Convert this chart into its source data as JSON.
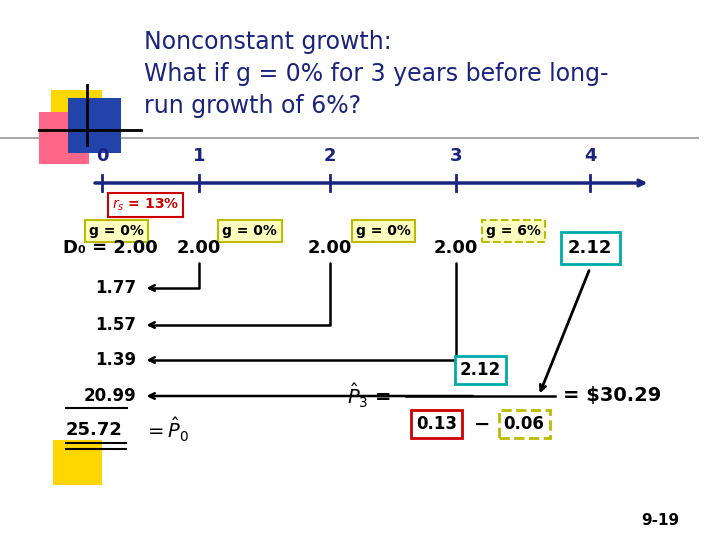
{
  "title_lines": [
    "Nonconstant growth:",
    "What if g = 0% for 3 years before long-",
    "run growth of 6%?"
  ],
  "title_color": "#1a237e",
  "tick_labels": [
    "0",
    "1",
    "2",
    "3",
    "4"
  ],
  "g_labels": [
    "g = 0%",
    "g = 0%",
    "g = 0%",
    "g = 6%"
  ],
  "div_values": [
    "2.00",
    "2.00",
    "2.00",
    "2.12"
  ],
  "d0_label": "D₀ = 2.00",
  "pv_labels": [
    "1.77",
    "1.57",
    "1.39"
  ],
  "pv20_99": "20.99",
  "sum_value": "25.72",
  "slide_num": "9-19"
}
